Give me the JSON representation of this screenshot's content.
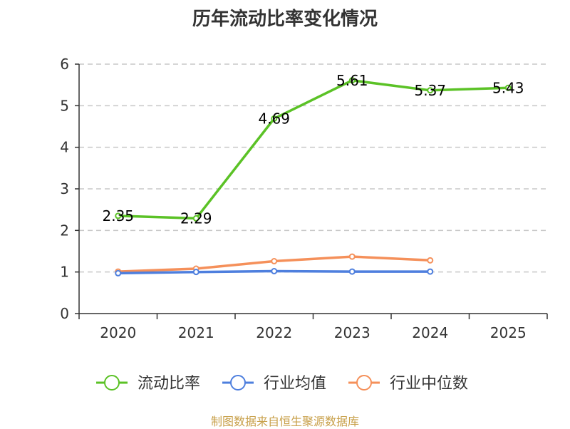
{
  "chart_data": {
    "type": "line",
    "title": "历年流动比率变化情况",
    "categories": [
      "2020",
      "2021",
      "2022",
      "2023",
      "2024",
      "2025"
    ],
    "ylim": [
      0,
      6
    ],
    "yticks": [
      0,
      1,
      2,
      3,
      4,
      5,
      6
    ],
    "grid": true,
    "legend_position": "bottom",
    "series": [
      {
        "name": "流动比率",
        "color": "#5bc226",
        "values": [
          2.35,
          2.29,
          4.69,
          5.61,
          5.37,
          5.43
        ],
        "labels": true
      },
      {
        "name": "行业均值",
        "color": "#4e7fde",
        "values": [
          0.97,
          1.0,
          1.02,
          1.01,
          1.01,
          null
        ],
        "labels": false
      },
      {
        "name": "行业中位数",
        "color": "#f5905a",
        "values": [
          1.01,
          1.08,
          1.26,
          1.37,
          1.28,
          null
        ],
        "labels": false
      }
    ]
  },
  "source_note": "制图数据来自恒生聚源数据库"
}
